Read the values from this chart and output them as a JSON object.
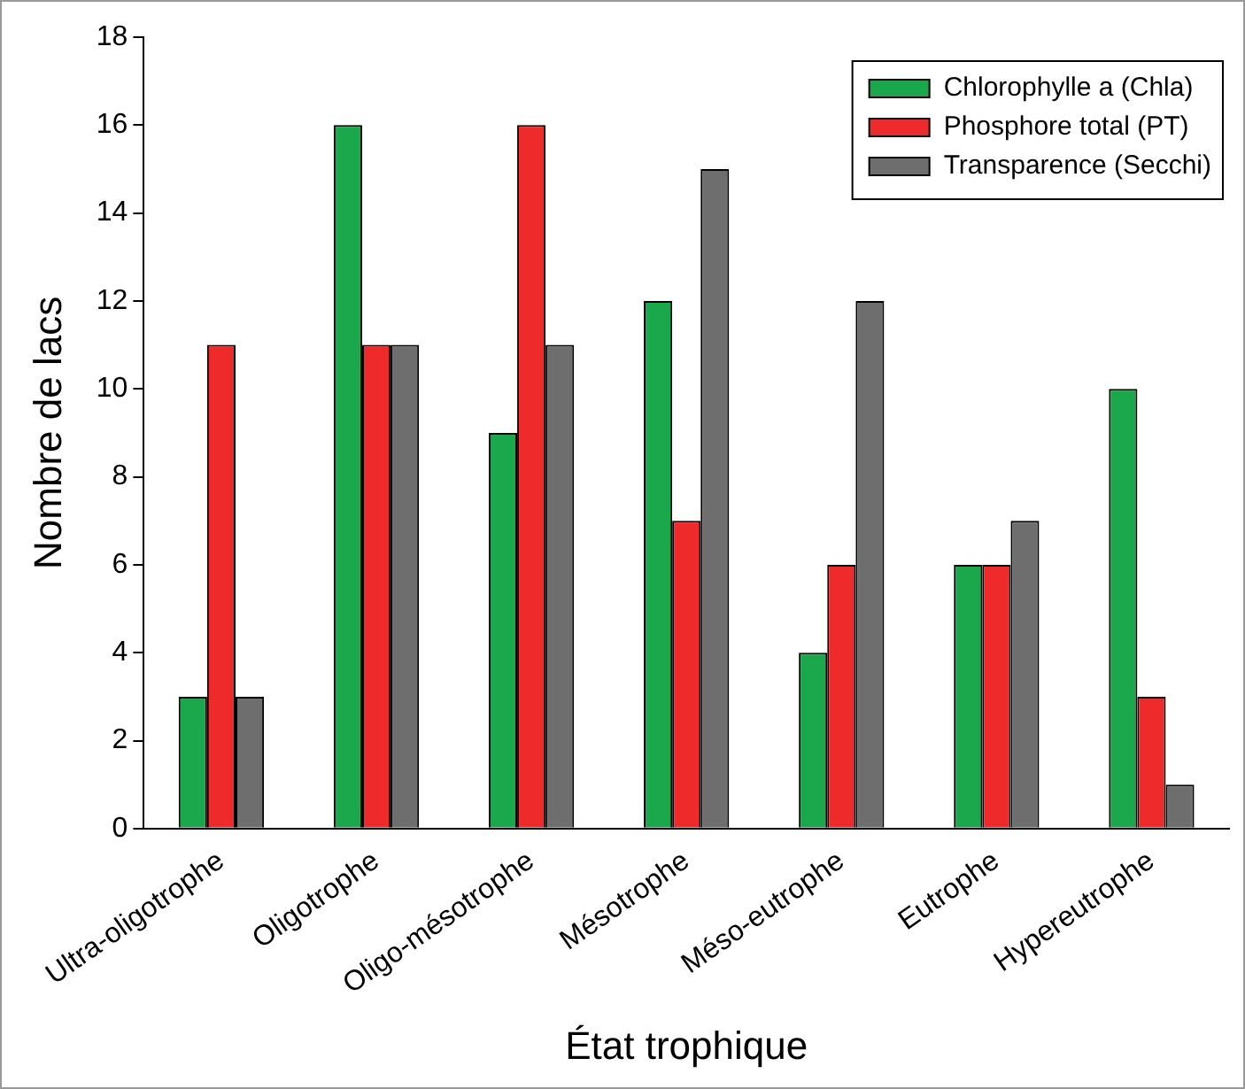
{
  "chart_data": {
    "type": "bar",
    "xlabel": "État trophique",
    "ylabel": "Nombre de lacs",
    "categories": [
      "Ultra-oligotrophe",
      "Oligotrophe",
      "Oligo-mésotrophe",
      "Mésotrophe",
      "Méso-eutrophe",
      "Eutrophe",
      "Hypereutrophe"
    ],
    "series": [
      {
        "name": "Chlorophylle a (Chla)",
        "color": "#1ba84c",
        "values": [
          3,
          16,
          9,
          12,
          4,
          6,
          10
        ]
      },
      {
        "name": "Phosphore total (PT)",
        "color": "#ee2a2a",
        "values": [
          11,
          11,
          16,
          7,
          6,
          6,
          3
        ]
      },
      {
        "name": "Transparence (Secchi)",
        "color": "#6e6e6e",
        "values": [
          3,
          11,
          11,
          15,
          12,
          7,
          1
        ]
      }
    ],
    "ylim": [
      0,
      18
    ],
    "yticks": [
      0,
      2,
      4,
      6,
      8,
      10,
      12,
      14,
      16,
      18
    ],
    "grid": false,
    "legend": "top right"
  }
}
